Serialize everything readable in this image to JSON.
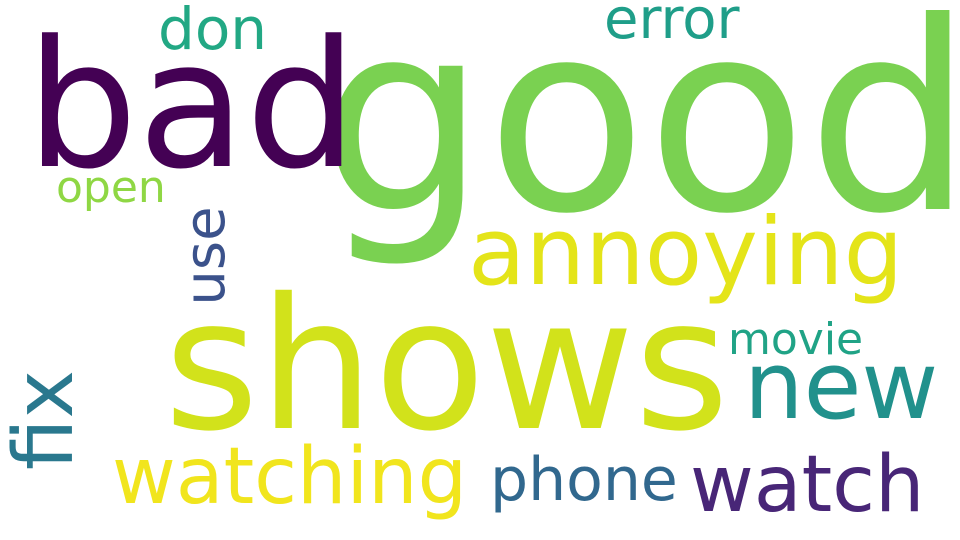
{
  "word_cloud": {
    "words": [
      {
        "text": "good",
        "color": "#7ad151"
      },
      {
        "text": "bad",
        "color": "#440154"
      },
      {
        "text": "shows",
        "color": "#d2e21b"
      },
      {
        "text": "annoying",
        "color": "#e4e419"
      },
      {
        "text": "new",
        "color": "#21918c"
      },
      {
        "text": "watching",
        "color": "#f1e51d"
      },
      {
        "text": "watch",
        "color": "#482677"
      },
      {
        "text": "fix",
        "color": "#2a788e"
      },
      {
        "text": "phone",
        "color": "#31688e"
      },
      {
        "text": "use",
        "color": "#3b528b"
      },
      {
        "text": "error",
        "color": "#1f9e89"
      },
      {
        "text": "don",
        "color": "#22a884"
      },
      {
        "text": "open",
        "color": "#8fd744"
      },
      {
        "text": "movie",
        "color": "#20a386"
      }
    ]
  }
}
